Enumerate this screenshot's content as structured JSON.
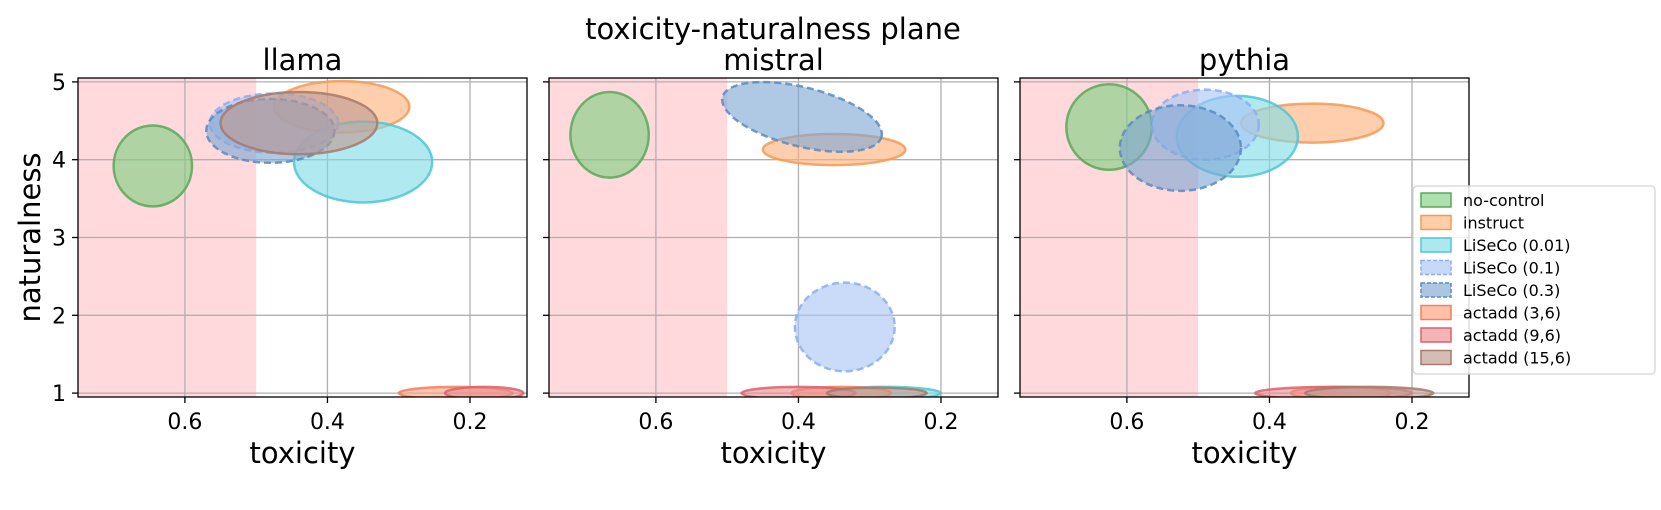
{
  "suptitle": "toxicity-naturalness plane",
  "chart_data": {
    "type": "scatter",
    "xlabel": "toxicity",
    "ylabel": "naturalness",
    "xlim": [
      0.75,
      0.12
    ],
    "ylim": [
      0.95,
      5.05
    ],
    "x_ticks": [
      0.6,
      0.4,
      0.2
    ],
    "y_ticks": [
      1,
      2,
      3,
      4,
      5
    ],
    "grid": true,
    "legend_position": "right",
    "shaded_region": {
      "x_from": 0.75,
      "x_to": 0.5,
      "color": "#ffd9dc"
    },
    "legend": [
      {
        "key": "no-control",
        "label": "no-control",
        "fill": "#7fcf7f",
        "stroke": "#5aa85a",
        "dashed": false
      },
      {
        "key": "instruct",
        "label": "instruct",
        "fill": "#ffb27a",
        "stroke": "#f59a55",
        "dashed": false
      },
      {
        "key": "liseco001",
        "label": "LiSeCo (0.01)",
        "fill": "#7fdde6",
        "stroke": "#4fc7d3",
        "dashed": false
      },
      {
        "key": "liseco01",
        "label": "LiSeCo (0.1)",
        "fill": "#a9c4f5",
        "stroke": "#8aaeee",
        "dashed": true
      },
      {
        "key": "liseco03",
        "label": "LiSeCo (0.3)",
        "fill": "#7ea7d4",
        "stroke": "#5b8bbf",
        "dashed": true
      },
      {
        "key": "actadd36",
        "label": "actadd (3,6)",
        "fill": "#ff9f7a",
        "stroke": "#f08060",
        "dashed": false
      },
      {
        "key": "actadd96",
        "label": "actadd (9,6)",
        "fill": "#ee8a8f",
        "stroke": "#d8646b",
        "dashed": false
      },
      {
        "key": "actadd156",
        "label": "actadd (15,6)",
        "fill": "#bf9a8f",
        "stroke": "#a67a6c",
        "dashed": false
      }
    ],
    "panels": [
      {
        "title": "llama",
        "ellipses": [
          {
            "series": "no-control",
            "x": 0.645,
            "y": 3.92,
            "rx": 0.055,
            "ry": 0.52,
            "angle": 0
          },
          {
            "series": "instruct",
            "x": 0.38,
            "y": 4.68,
            "rx": 0.095,
            "ry": 0.33,
            "angle": 0
          },
          {
            "series": "liseco001",
            "x": 0.35,
            "y": 3.97,
            "rx": 0.097,
            "ry": 0.52,
            "angle": 0
          },
          {
            "series": "liseco01",
            "x": 0.475,
            "y": 4.47,
            "rx": 0.09,
            "ry": 0.38,
            "angle": 0
          },
          {
            "series": "liseco03",
            "x": 0.48,
            "y": 4.37,
            "rx": 0.09,
            "ry": 0.41,
            "angle": 0
          },
          {
            "series": "actadd36",
            "x": 0.22,
            "y": 1.0,
            "rx": 0.08,
            "ry": 0.08,
            "angle": 0
          },
          {
            "series": "actadd96",
            "x": 0.18,
            "y": 1.0,
            "rx": 0.055,
            "ry": 0.08,
            "angle": 0
          },
          {
            "series": "actadd156",
            "x": 0.44,
            "y": 4.47,
            "rx": 0.11,
            "ry": 0.4,
            "angle": 0
          }
        ]
      },
      {
        "title": "mistral",
        "ellipses": [
          {
            "series": "no-control",
            "x": 0.665,
            "y": 4.32,
            "rx": 0.055,
            "ry": 0.55,
            "angle": 0
          },
          {
            "series": "instruct",
            "x": 0.35,
            "y": 4.13,
            "rx": 0.1,
            "ry": 0.2,
            "angle": 0
          },
          {
            "series": "liseco001",
            "x": 0.28,
            "y": 1.0,
            "rx": 0.08,
            "ry": 0.08,
            "angle": 0
          },
          {
            "series": "liseco01",
            "x": 0.335,
            "y": 1.85,
            "rx": 0.07,
            "ry": 0.57,
            "angle": 0
          },
          {
            "series": "liseco03",
            "x": 0.395,
            "y": 4.55,
            "rx": 0.115,
            "ry": 0.38,
            "angle": 14
          },
          {
            "series": "actadd36",
            "x": 0.34,
            "y": 1.0,
            "rx": 0.07,
            "ry": 0.08,
            "angle": 0
          },
          {
            "series": "actadd96",
            "x": 0.4,
            "y": 1.0,
            "rx": 0.08,
            "ry": 0.08,
            "angle": 0
          },
          {
            "series": "actadd156",
            "x": 0.29,
            "y": 1.0,
            "rx": 0.07,
            "ry": 0.07,
            "angle": 0
          }
        ]
      },
      {
        "title": "pythia",
        "ellipses": [
          {
            "series": "no-control",
            "x": 0.625,
            "y": 4.42,
            "rx": 0.06,
            "ry": 0.55,
            "angle": 0
          },
          {
            "series": "instruct",
            "x": 0.34,
            "y": 4.47,
            "rx": 0.1,
            "ry": 0.25,
            "angle": 0
          },
          {
            "series": "liseco001",
            "x": 0.445,
            "y": 4.3,
            "rx": 0.085,
            "ry": 0.52,
            "angle": 0
          },
          {
            "series": "liseco01",
            "x": 0.49,
            "y": 4.45,
            "rx": 0.075,
            "ry": 0.45,
            "angle": 0
          },
          {
            "series": "liseco03",
            "x": 0.525,
            "y": 4.15,
            "rx": 0.085,
            "ry": 0.55,
            "angle": 0
          },
          {
            "series": "actadd36",
            "x": 0.3,
            "y": 1.0,
            "rx": 0.07,
            "ry": 0.08,
            "angle": 0
          },
          {
            "series": "actadd96",
            "x": 0.31,
            "y": 1.0,
            "rx": 0.11,
            "ry": 0.08,
            "angle": 0
          },
          {
            "series": "actadd156",
            "x": 0.26,
            "y": 1.0,
            "rx": 0.09,
            "ry": 0.08,
            "angle": 0
          }
        ]
      }
    ]
  }
}
